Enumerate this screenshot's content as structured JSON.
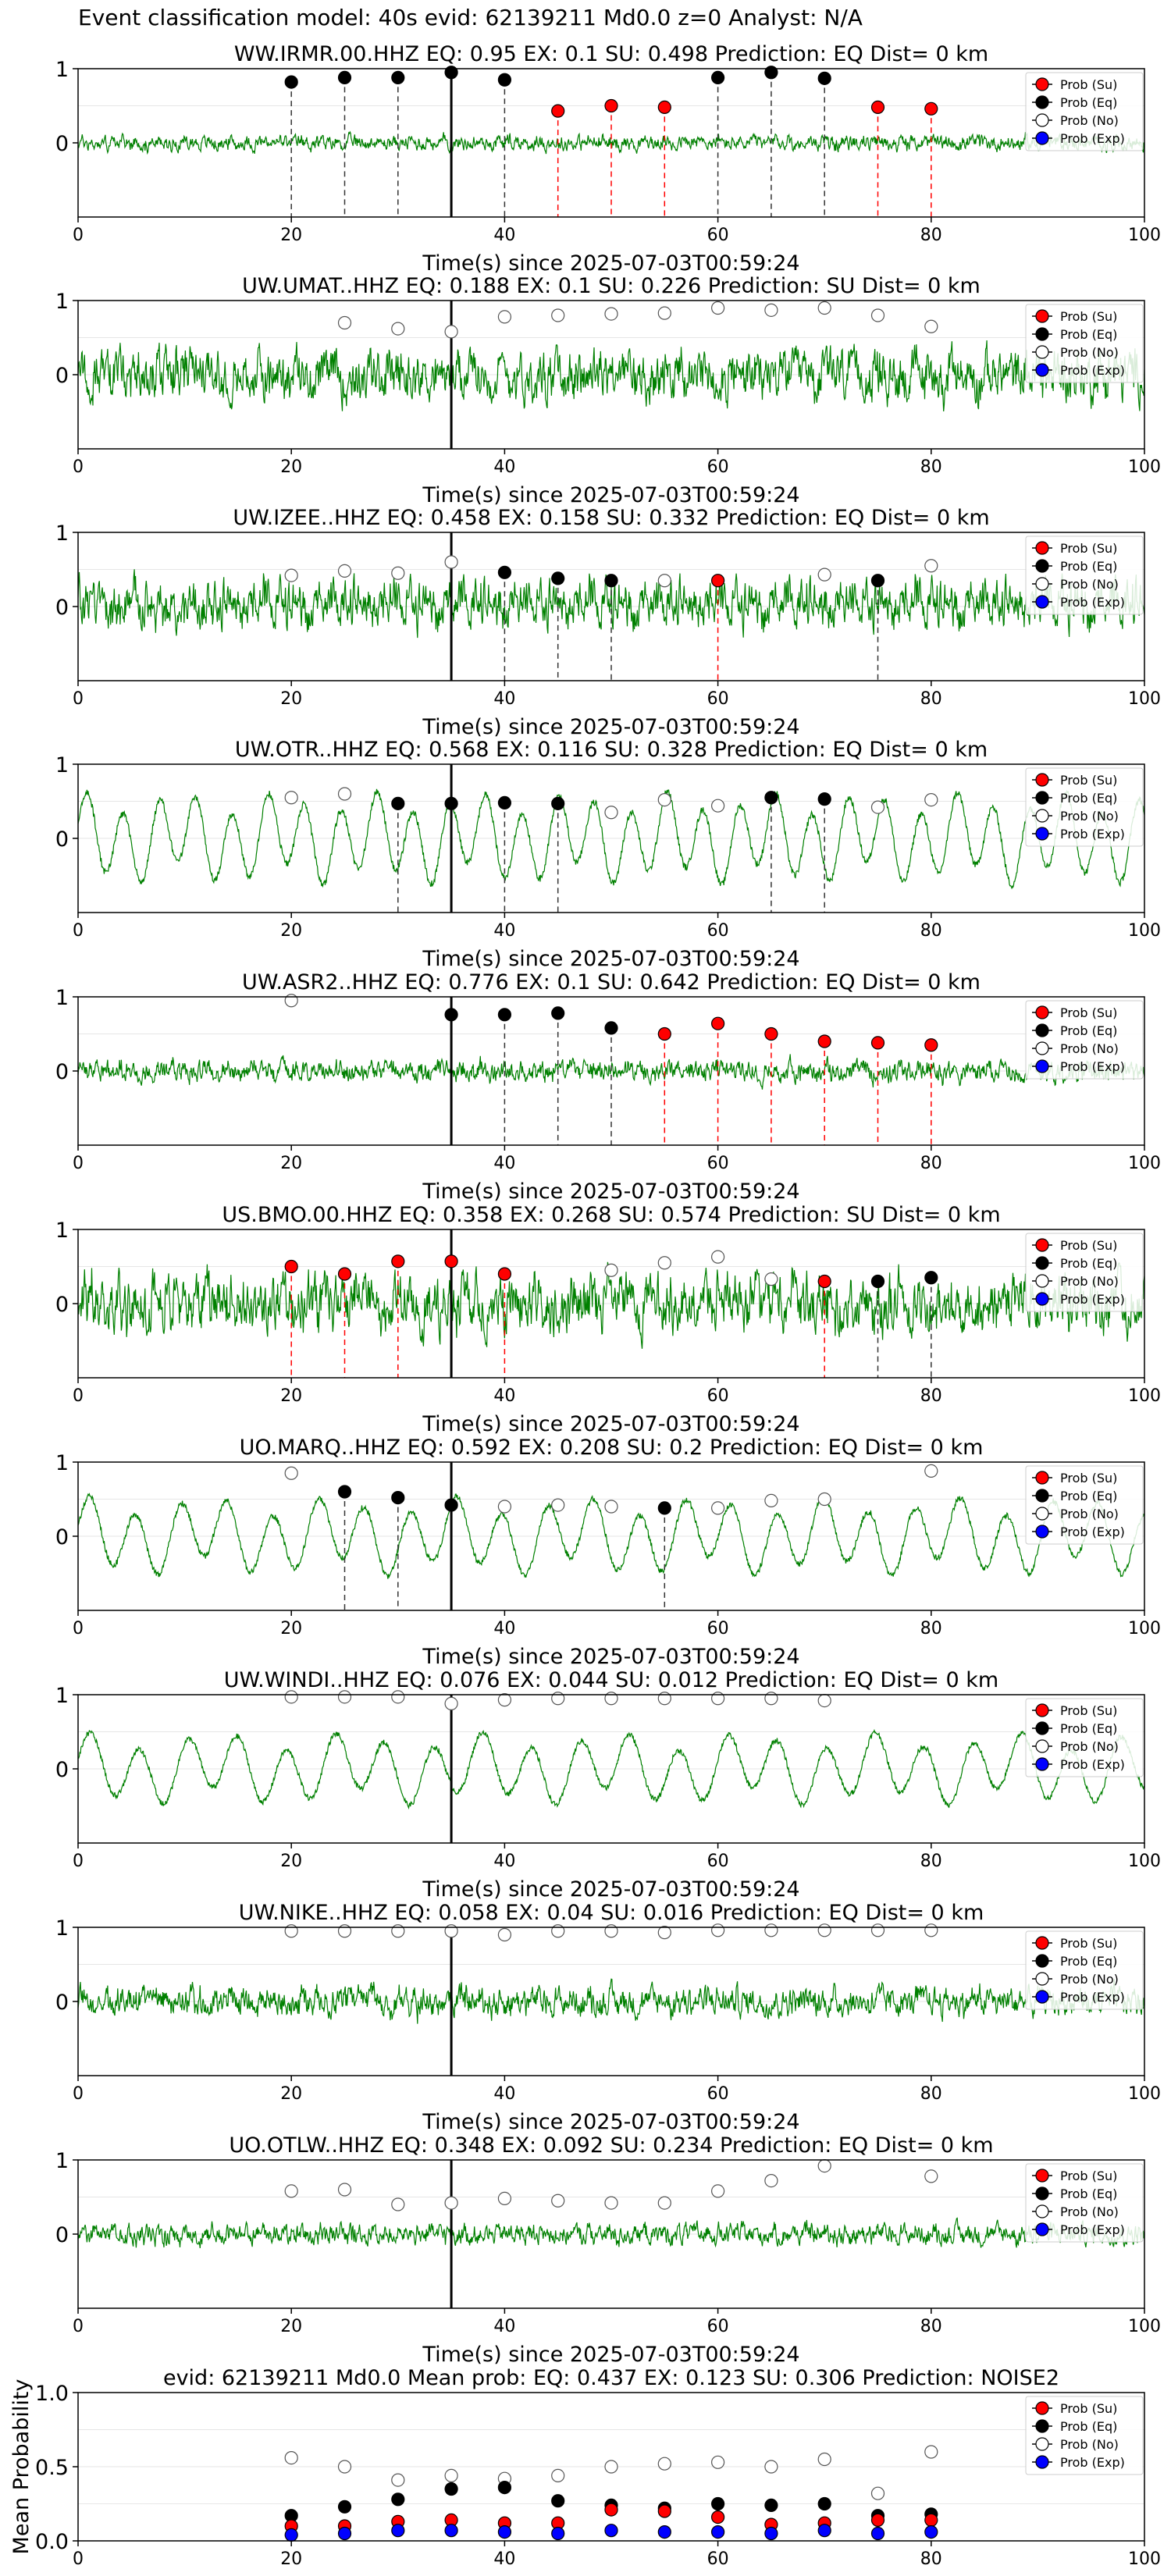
{
  "header": {
    "title": "Event classification model: 40s evid: 62139211 Md0.0 z=0 Analyst: N/A"
  },
  "colors": {
    "waveform": "#008000",
    "prob_su": "#ff0000",
    "prob_eq": "#000000",
    "prob_no": "#ffffff",
    "prob_exp": "#0000ff",
    "eq_line": "#000000",
    "su_line": "#ff0000"
  },
  "chart_data": [
    {
      "type": "line",
      "title": "WW.IRMR.00.HHZ   EQ: 0.95  EX: 0.1  SU: 0.498   Prediction: EQ    Dist= 0 km",
      "xlabel": "Time(s) since 2025-07-03T00:59:24",
      "ylabel": "",
      "xlim": [
        0,
        100
      ],
      "ylim": [
        -1,
        1
      ],
      "xticks": [
        "0",
        "20",
        "40",
        "60",
        "80",
        "100"
      ],
      "yticks": [
        "0",
        "1"
      ],
      "event_line_x": 35,
      "waveform_kind": "noise",
      "waveform_amplitude": 0.18,
      "legend": [
        "Prob (Su)",
        "Prob (Eq)",
        "Prob (No)",
        "Prob (Exp)"
      ],
      "points": [
        {
          "x": 20,
          "y": 0.82,
          "cls": "Eq"
        },
        {
          "x": 25,
          "y": 0.88,
          "cls": "Eq"
        },
        {
          "x": 30,
          "y": 0.88,
          "cls": "Eq"
        },
        {
          "x": 35,
          "y": 0.95,
          "cls": "Eq"
        },
        {
          "x": 40,
          "y": 0.85,
          "cls": "Eq"
        },
        {
          "x": 45,
          "y": 0.43,
          "cls": "Su"
        },
        {
          "x": 50,
          "y": 0.5,
          "cls": "Su"
        },
        {
          "x": 55,
          "y": 0.48,
          "cls": "Su"
        },
        {
          "x": 60,
          "y": 0.88,
          "cls": "Eq"
        },
        {
          "x": 65,
          "y": 0.95,
          "cls": "Eq"
        },
        {
          "x": 70,
          "y": 0.87,
          "cls": "Eq"
        },
        {
          "x": 75,
          "y": 0.48,
          "cls": "Su"
        },
        {
          "x": 80,
          "y": 0.46,
          "cls": "Su"
        }
      ]
    },
    {
      "type": "line",
      "title": "UW.UMAT..HHZ   EQ: 0.188  EX: 0.1  SU: 0.226   Prediction: SU    Dist= 0 km",
      "xlabel": "Time(s) since 2025-07-03T00:59:24",
      "ylabel": "",
      "xlim": [
        0,
        100
      ],
      "ylim": [
        -1,
        1
      ],
      "xticks": [
        "0",
        "20",
        "40",
        "60",
        "80",
        "100"
      ],
      "yticks": [
        "0",
        "1"
      ],
      "event_line_x": 35,
      "waveform_kind": "noise",
      "waveform_amplitude": 0.6,
      "legend": [
        "Prob (Su)",
        "Prob (Eq)",
        "Prob (No)",
        "Prob (Exp)"
      ],
      "points": [
        {
          "x": 25,
          "y": 0.7,
          "cls": "No"
        },
        {
          "x": 30,
          "y": 0.62,
          "cls": "No"
        },
        {
          "x": 35,
          "y": 0.58,
          "cls": "No"
        },
        {
          "x": 40,
          "y": 0.78,
          "cls": "No"
        },
        {
          "x": 45,
          "y": 0.8,
          "cls": "No"
        },
        {
          "x": 50,
          "y": 0.82,
          "cls": "No"
        },
        {
          "x": 55,
          "y": 0.83,
          "cls": "No"
        },
        {
          "x": 60,
          "y": 0.9,
          "cls": "No"
        },
        {
          "x": 65,
          "y": 0.87,
          "cls": "No"
        },
        {
          "x": 70,
          "y": 0.9,
          "cls": "No"
        },
        {
          "x": 75,
          "y": 0.8,
          "cls": "No"
        },
        {
          "x": 80,
          "y": 0.65,
          "cls": "No"
        }
      ]
    },
    {
      "type": "line",
      "title": "UW.IZEE..HHZ   EQ: 0.458  EX: 0.158  SU: 0.332   Prediction: EQ    Dist= 0 km",
      "xlabel": "Time(s) since 2025-07-03T00:59:24",
      "ylabel": "",
      "xlim": [
        0,
        100
      ],
      "ylim": [
        -1,
        1
      ],
      "xticks": [
        "0",
        "20",
        "40",
        "60",
        "80",
        "100"
      ],
      "yticks": [
        "0",
        "1"
      ],
      "event_line_x": 35,
      "waveform_kind": "noise",
      "waveform_amplitude": 0.6,
      "legend": [
        "Prob (Su)",
        "Prob (Eq)",
        "Prob (No)",
        "Prob (Exp)"
      ],
      "points": [
        {
          "x": 20,
          "y": 0.42,
          "cls": "No"
        },
        {
          "x": 25,
          "y": 0.48,
          "cls": "No"
        },
        {
          "x": 30,
          "y": 0.45,
          "cls": "No"
        },
        {
          "x": 35,
          "y": 0.6,
          "cls": "No"
        },
        {
          "x": 40,
          "y": 0.46,
          "cls": "Eq"
        },
        {
          "x": 45,
          "y": 0.38,
          "cls": "Eq"
        },
        {
          "x": 50,
          "y": 0.35,
          "cls": "Eq"
        },
        {
          "x": 55,
          "y": 0.35,
          "cls": "No"
        },
        {
          "x": 60,
          "y": 0.35,
          "cls": "Su"
        },
        {
          "x": 70,
          "y": 0.43,
          "cls": "No"
        },
        {
          "x": 75,
          "y": 0.35,
          "cls": "Eq"
        },
        {
          "x": 80,
          "y": 0.55,
          "cls": "No"
        }
      ]
    },
    {
      "type": "line",
      "title": "UW.OTR..HHZ   EQ: 0.568  EX: 0.116  SU: 0.328   Prediction: EQ    Dist= 0 km",
      "xlabel": "Time(s) since 2025-07-03T00:59:24",
      "ylabel": "",
      "xlim": [
        0,
        100
      ],
      "ylim": [
        -1,
        1
      ],
      "xticks": [
        "0",
        "20",
        "40",
        "60",
        "80",
        "100"
      ],
      "yticks": [
        "0",
        "1"
      ],
      "event_line_x": 35,
      "waveform_kind": "sine",
      "waveform_amplitude": 0.7,
      "legend": [
        "Prob (Su)",
        "Prob (Eq)",
        "Prob (No)",
        "Prob (Exp)"
      ],
      "points": [
        {
          "x": 20,
          "y": 0.55,
          "cls": "No"
        },
        {
          "x": 25,
          "y": 0.6,
          "cls": "No"
        },
        {
          "x": 30,
          "y": 0.47,
          "cls": "Eq"
        },
        {
          "x": 35,
          "y": 0.47,
          "cls": "Eq"
        },
        {
          "x": 40,
          "y": 0.48,
          "cls": "Eq"
        },
        {
          "x": 45,
          "y": 0.47,
          "cls": "Eq"
        },
        {
          "x": 50,
          "y": 0.35,
          "cls": "No"
        },
        {
          "x": 55,
          "y": 0.52,
          "cls": "No"
        },
        {
          "x": 60,
          "y": 0.44,
          "cls": "No"
        },
        {
          "x": 65,
          "y": 0.55,
          "cls": "Eq"
        },
        {
          "x": 70,
          "y": 0.53,
          "cls": "Eq"
        },
        {
          "x": 75,
          "y": 0.42,
          "cls": "No"
        },
        {
          "x": 80,
          "y": 0.52,
          "cls": "No"
        }
      ]
    },
    {
      "type": "line",
      "title": "UW.ASR2..HHZ   EQ: 0.776  EX: 0.1  SU: 0.642   Prediction: EQ    Dist= 0 km",
      "xlabel": "Time(s) since 2025-07-03T00:59:24",
      "ylabel": "",
      "xlim": [
        0,
        100
      ],
      "ylim": [
        -1,
        1
      ],
      "xticks": [
        "0",
        "20",
        "40",
        "60",
        "80",
        "100"
      ],
      "yticks": [
        "0",
        "1"
      ],
      "event_line_x": 35,
      "waveform_kind": "noise",
      "waveform_amplitude": 0.25,
      "legend": [
        "Prob (Su)",
        "Prob (Eq)",
        "Prob (No)",
        "Prob (Exp)"
      ],
      "points": [
        {
          "x": 20,
          "y": 0.95,
          "cls": "No"
        },
        {
          "x": 35,
          "y": 0.76,
          "cls": "Eq"
        },
        {
          "x": 40,
          "y": 0.76,
          "cls": "Eq"
        },
        {
          "x": 45,
          "y": 0.78,
          "cls": "Eq"
        },
        {
          "x": 50,
          "y": 0.58,
          "cls": "Eq"
        },
        {
          "x": 55,
          "y": 0.5,
          "cls": "Su"
        },
        {
          "x": 60,
          "y": 0.64,
          "cls": "Su"
        },
        {
          "x": 65,
          "y": 0.5,
          "cls": "Su"
        },
        {
          "x": 70,
          "y": 0.4,
          "cls": "Su"
        },
        {
          "x": 75,
          "y": 0.38,
          "cls": "Su"
        },
        {
          "x": 80,
          "y": 0.35,
          "cls": "Su"
        }
      ]
    },
    {
      "type": "line",
      "title": "US.BMO.00.HHZ   EQ: 0.358  EX: 0.268  SU: 0.574   Prediction: SU    Dist= 0 km",
      "xlabel": "Time(s) since 2025-07-03T00:59:24",
      "ylabel": "",
      "xlim": [
        0,
        100
      ],
      "ylim": [
        -1,
        1
      ],
      "xticks": [
        "0",
        "20",
        "40",
        "60",
        "80",
        "100"
      ],
      "yticks": [
        "0",
        "1"
      ],
      "event_line_x": 35,
      "waveform_kind": "noise",
      "waveform_amplitude": 0.7,
      "legend": [
        "Prob (Su)",
        "Prob (Eq)",
        "Prob (No)",
        "Prob (Exp)"
      ],
      "points": [
        {
          "x": 20,
          "y": 0.5,
          "cls": "Su"
        },
        {
          "x": 25,
          "y": 0.4,
          "cls": "Su"
        },
        {
          "x": 30,
          "y": 0.57,
          "cls": "Su"
        },
        {
          "x": 35,
          "y": 0.57,
          "cls": "Su"
        },
        {
          "x": 40,
          "y": 0.4,
          "cls": "Su"
        },
        {
          "x": 50,
          "y": 0.45,
          "cls": "No"
        },
        {
          "x": 55,
          "y": 0.55,
          "cls": "No"
        },
        {
          "x": 60,
          "y": 0.63,
          "cls": "No"
        },
        {
          "x": 65,
          "y": 0.33,
          "cls": "No"
        },
        {
          "x": 70,
          "y": 0.3,
          "cls": "Su"
        },
        {
          "x": 75,
          "y": 0.3,
          "cls": "Eq"
        },
        {
          "x": 80,
          "y": 0.35,
          "cls": "Eq"
        }
      ]
    },
    {
      "type": "line",
      "title": "UO.MARQ..HHZ   EQ: 0.592  EX: 0.208  SU: 0.2   Prediction: EQ    Dist= 0 km",
      "xlabel": "Time(s) since 2025-07-03T00:59:24",
      "ylabel": "",
      "xlim": [
        0,
        100
      ],
      "ylim": [
        -1,
        1
      ],
      "xticks": [
        "0",
        "20",
        "40",
        "60",
        "80",
        "100"
      ],
      "yticks": [
        "0",
        "1"
      ],
      "event_line_x": 35,
      "waveform_kind": "sine",
      "waveform_amplitude": 0.6,
      "legend": [
        "Prob (Su)",
        "Prob (Eq)",
        "Prob (No)",
        "Prob (Exp)"
      ],
      "points": [
        {
          "x": 20,
          "y": 0.85,
          "cls": "No"
        },
        {
          "x": 25,
          "y": 0.6,
          "cls": "Eq"
        },
        {
          "x": 30,
          "y": 0.52,
          "cls": "Eq"
        },
        {
          "x": 35,
          "y": 0.42,
          "cls": "Eq"
        },
        {
          "x": 40,
          "y": 0.4,
          "cls": "No"
        },
        {
          "x": 45,
          "y": 0.42,
          "cls": "No"
        },
        {
          "x": 50,
          "y": 0.4,
          "cls": "No"
        },
        {
          "x": 55,
          "y": 0.38,
          "cls": "Eq"
        },
        {
          "x": 60,
          "y": 0.38,
          "cls": "No"
        },
        {
          "x": 65,
          "y": 0.48,
          "cls": "No"
        },
        {
          "x": 70,
          "y": 0.5,
          "cls": "No"
        },
        {
          "x": 80,
          "y": 0.88,
          "cls": "No"
        }
      ]
    },
    {
      "type": "line",
      "title": "UW.WINDI..HHZ   EQ: 0.076  EX: 0.044  SU: 0.012   Prediction: EQ    Dist= 0 km",
      "xlabel": "Time(s) since 2025-07-03T00:59:24",
      "ylabel": "",
      "xlim": [
        0,
        100
      ],
      "ylim": [
        -1,
        1
      ],
      "xticks": [
        "0",
        "20",
        "40",
        "60",
        "80",
        "100"
      ],
      "yticks": [
        "0",
        "1"
      ],
      "event_line_x": 35,
      "waveform_kind": "sine",
      "waveform_amplitude": 0.55,
      "legend": [
        "Prob (Su)",
        "Prob (Eq)",
        "Prob (No)",
        "Prob (Exp)"
      ],
      "points": [
        {
          "x": 20,
          "y": 0.97,
          "cls": "No"
        },
        {
          "x": 25,
          "y": 0.97,
          "cls": "No"
        },
        {
          "x": 30,
          "y": 0.97,
          "cls": "No"
        },
        {
          "x": 35,
          "y": 0.88,
          "cls": "No"
        },
        {
          "x": 40,
          "y": 0.93,
          "cls": "No"
        },
        {
          "x": 45,
          "y": 0.95,
          "cls": "No"
        },
        {
          "x": 50,
          "y": 0.95,
          "cls": "No"
        },
        {
          "x": 55,
          "y": 0.95,
          "cls": "No"
        },
        {
          "x": 60,
          "y": 0.95,
          "cls": "No"
        },
        {
          "x": 65,
          "y": 0.95,
          "cls": "No"
        },
        {
          "x": 70,
          "y": 0.92,
          "cls": "No"
        }
      ]
    },
    {
      "type": "line",
      "title": "UW.NIKE..HHZ   EQ: 0.058  EX: 0.04  SU: 0.016   Prediction: EQ    Dist= 0 km",
      "xlabel": "Time(s) since 2025-07-03T00:59:24",
      "ylabel": "",
      "xlim": [
        0,
        100
      ],
      "ylim": [
        -1,
        1
      ],
      "xticks": [
        "0",
        "20",
        "40",
        "60",
        "80",
        "100"
      ],
      "yticks": [
        "0",
        "1"
      ],
      "event_line_x": 35,
      "waveform_kind": "noise",
      "waveform_amplitude": 0.35,
      "legend": [
        "Prob (Su)",
        "Prob (Eq)",
        "Prob (No)",
        "Prob (Exp)"
      ],
      "points": [
        {
          "x": 20,
          "y": 0.95,
          "cls": "No"
        },
        {
          "x": 25,
          "y": 0.95,
          "cls": "No"
        },
        {
          "x": 30,
          "y": 0.95,
          "cls": "No"
        },
        {
          "x": 35,
          "y": 0.95,
          "cls": "No"
        },
        {
          "x": 40,
          "y": 0.9,
          "cls": "No"
        },
        {
          "x": 45,
          "y": 0.95,
          "cls": "No"
        },
        {
          "x": 50,
          "y": 0.95,
          "cls": "No"
        },
        {
          "x": 55,
          "y": 0.93,
          "cls": "No"
        },
        {
          "x": 60,
          "y": 0.96,
          "cls": "No"
        },
        {
          "x": 65,
          "y": 0.96,
          "cls": "No"
        },
        {
          "x": 70,
          "y": 0.96,
          "cls": "No"
        },
        {
          "x": 75,
          "y": 0.96,
          "cls": "No"
        },
        {
          "x": 80,
          "y": 0.96,
          "cls": "No"
        }
      ]
    },
    {
      "type": "line",
      "title": "UO.OTLW..HHZ   EQ: 0.348  EX: 0.092  SU: 0.234   Prediction: EQ    Dist= 0 km",
      "xlabel": "Time(s) since 2025-07-03T00:59:24",
      "ylabel": "",
      "xlim": [
        0,
        100
      ],
      "ylim": [
        -1,
        1
      ],
      "xticks": [
        "0",
        "20",
        "40",
        "60",
        "80",
        "100"
      ],
      "yticks": [
        "0",
        "1"
      ],
      "event_line_x": 35,
      "waveform_kind": "noise",
      "waveform_amplitude": 0.25,
      "legend": [
        "Prob (Su)",
        "Prob (Eq)",
        "Prob (No)",
        "Prob (Exp)"
      ],
      "points": [
        {
          "x": 20,
          "y": 0.58,
          "cls": "No"
        },
        {
          "x": 25,
          "y": 0.6,
          "cls": "No"
        },
        {
          "x": 30,
          "y": 0.4,
          "cls": "No"
        },
        {
          "x": 35,
          "y": 0.42,
          "cls": "No"
        },
        {
          "x": 40,
          "y": 0.48,
          "cls": "No"
        },
        {
          "x": 45,
          "y": 0.45,
          "cls": "No"
        },
        {
          "x": 50,
          "y": 0.42,
          "cls": "No"
        },
        {
          "x": 55,
          "y": 0.42,
          "cls": "No"
        },
        {
          "x": 60,
          "y": 0.58,
          "cls": "No"
        },
        {
          "x": 65,
          "y": 0.72,
          "cls": "No"
        },
        {
          "x": 70,
          "y": 0.92,
          "cls": "No"
        },
        {
          "x": 80,
          "y": 0.78,
          "cls": "No"
        }
      ]
    },
    {
      "type": "scatter",
      "title": "evid: 62139211  Md0.0   Mean prob:   EQ: 0.437  EX: 0.123  SU: 0.306   Prediction: NOISE2",
      "xlabel": "",
      "ylabel": "Mean Probability",
      "xlim": [
        0,
        100
      ],
      "ylim": [
        0,
        1
      ],
      "xticks": [
        "0",
        "20",
        "40",
        "60",
        "80",
        "100"
      ],
      "yticks": [
        "0.0",
        "0.5",
        "1.0"
      ],
      "legend": [
        "Prob (Su)",
        "Prob (Eq)",
        "Prob (No)",
        "Prob (Exp)"
      ],
      "x": [
        20,
        25,
        30,
        35,
        40,
        45,
        50,
        55,
        60,
        65,
        70,
        75,
        80
      ],
      "series": [
        {
          "name": "Prob (No)",
          "cls": "No",
          "values": [
            0.56,
            0.5,
            0.41,
            0.44,
            0.42,
            0.44,
            0.5,
            0.52,
            0.53,
            0.5,
            0.55,
            0.32,
            0.6
          ]
        },
        {
          "name": "Prob (Eq)",
          "cls": "Eq",
          "values": [
            0.17,
            0.23,
            0.28,
            0.35,
            0.36,
            0.27,
            0.24,
            0.22,
            0.25,
            0.24,
            0.25,
            0.17,
            0.18
          ]
        },
        {
          "name": "Prob (Su)",
          "cls": "Su",
          "values": [
            0.1,
            0.1,
            0.13,
            0.14,
            0.12,
            0.12,
            0.21,
            0.2,
            0.16,
            0.11,
            0.12,
            0.14,
            0.14
          ]
        },
        {
          "name": "Prob (Exp)",
          "cls": "Exp",
          "values": [
            0.04,
            0.05,
            0.07,
            0.07,
            0.06,
            0.05,
            0.07,
            0.06,
            0.06,
            0.05,
            0.07,
            0.05,
            0.06
          ]
        }
      ]
    }
  ]
}
